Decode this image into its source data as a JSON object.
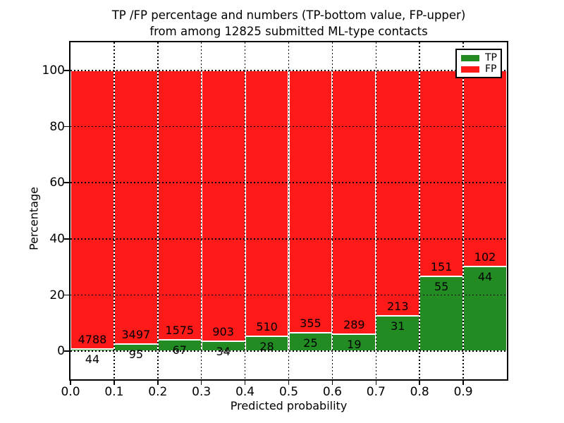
{
  "figure": {
    "title_line1": "TP /FP percentage and numbers (TP-bottom value, FP-upper)",
    "title_line2": "from among 12825 submitted ML-type contacts"
  },
  "chart_data": {
    "type": "bar",
    "stacked": true,
    "normalized": "each 0.1 bin scaled to 100%",
    "title": "TP /FP percentage and numbers (TP-bottom value, FP-upper) from among 12825 submitted ML-type contacts",
    "xlabel": "Predicted probability",
    "ylabel": "Percentage",
    "xlim": [
      0.0,
      1.0
    ],
    "ylim": [
      -10,
      110
    ],
    "grid": true,
    "x_tick_labels": [
      "0.0",
      "0.1",
      "0.2",
      "0.3",
      "0.4",
      "0.5",
      "0.6",
      "0.7",
      "0.8",
      "0.9"
    ],
    "y_tick_labels": [
      "0",
      "20",
      "40",
      "60",
      "80",
      "100"
    ],
    "bin_starts": [
      0.0,
      0.1,
      0.2,
      0.3,
      0.4,
      0.5,
      0.6,
      0.7,
      0.8,
      0.9
    ],
    "bin_width": 0.1,
    "series": [
      {
        "name": "TP",
        "color": "#228B22",
        "counts": [
          44,
          95,
          67,
          34,
          28,
          25,
          19,
          31,
          55,
          44
        ]
      },
      {
        "name": "FP",
        "color": "#FF1A1A",
        "counts": [
          4788,
          3497,
          1575,
          903,
          510,
          355,
          289,
          213,
          151,
          102
        ]
      }
    ],
    "tp_percent_per_bin": [
      0.91,
      2.64,
      4.08,
      3.63,
      5.2,
      6.58,
      6.17,
      12.7,
      26.7,
      30.14
    ],
    "legend": {
      "position": "upper right",
      "labels": [
        "TP",
        "FP"
      ]
    }
  },
  "colors": {
    "bar_edge": "#FFFFFF",
    "gridline": "#000000",
    "axis": "#000000"
  }
}
